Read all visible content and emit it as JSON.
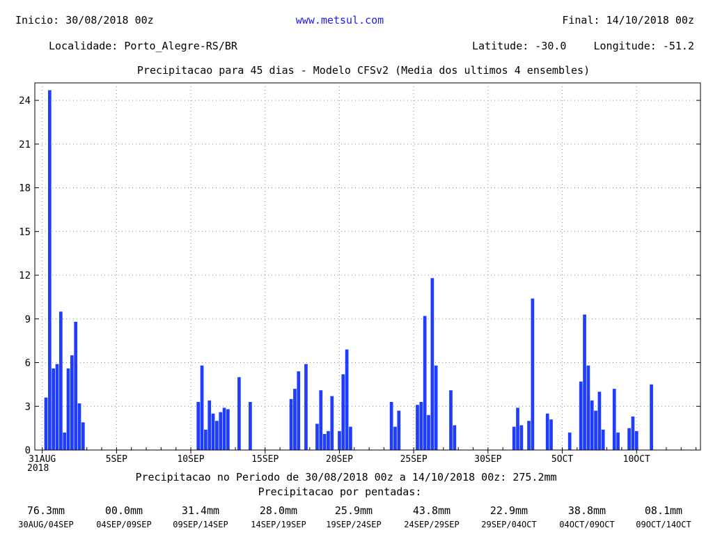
{
  "header": {
    "start": "Inicio: 30/08/2018 00z",
    "site": "www.metsul.com",
    "end": "Final: 14/10/2018 00z",
    "location": "Localidade: Porto_Alegre-RS/BR",
    "latitude": "Latitude: -30.0",
    "longitude": "Longitude: -51.2",
    "title": "Precipitacao para 45 dias - Modelo CFSv2 (Media dos ultimos 4 ensembles)"
  },
  "chart_data": {
    "type": "bar",
    "title": "Precipitacao para 45 dias - Modelo CFSv2 (Media dos ultimos 4 ensembles)",
    "xlabel": "",
    "ylabel": "",
    "ylim": [
      0,
      25.2
    ],
    "y_ticks": [
      0,
      3,
      6,
      9,
      12,
      15,
      18,
      21,
      24
    ],
    "x_range_days_from_31aug": [
      -0.5,
      44.3
    ],
    "x_ticks": [
      {
        "label": "31AUG",
        "sub": "2018",
        "day": 0
      },
      {
        "label": "5SEP",
        "day": 5
      },
      {
        "label": "10SEP",
        "day": 10
      },
      {
        "label": "15SEP",
        "day": 15
      },
      {
        "label": "20SEP",
        "day": 20
      },
      {
        "label": "25SEP",
        "day": 25
      },
      {
        "label": "30SEP",
        "day": 30
      },
      {
        "label": "5OCT",
        "day": 35
      },
      {
        "label": "10OCT",
        "day": 40
      }
    ],
    "grid": true,
    "bar_color": "#1f3dff",
    "bar_width_days": 0.22,
    "bars": [
      {
        "day": 0.25,
        "value": 3.6
      },
      {
        "day": 0.5,
        "value": 24.7
      },
      {
        "day": 0.75,
        "value": 5.6
      },
      {
        "day": 1.0,
        "value": 5.9
      },
      {
        "day": 1.25,
        "value": 9.5
      },
      {
        "day": 1.5,
        "value": 1.2
      },
      {
        "day": 1.75,
        "value": 5.6
      },
      {
        "day": 2.0,
        "value": 6.5
      },
      {
        "day": 2.25,
        "value": 8.8
      },
      {
        "day": 2.5,
        "value": 3.2
      },
      {
        "day": 2.75,
        "value": 1.9
      },
      {
        "day": 10.5,
        "value": 3.3
      },
      {
        "day": 10.75,
        "value": 5.8
      },
      {
        "day": 11.0,
        "value": 1.4
      },
      {
        "day": 11.25,
        "value": 3.4
      },
      {
        "day": 11.5,
        "value": 2.5
      },
      {
        "day": 11.75,
        "value": 2.0
      },
      {
        "day": 12.0,
        "value": 2.6
      },
      {
        "day": 12.25,
        "value": 2.9
      },
      {
        "day": 12.5,
        "value": 2.8
      },
      {
        "day": 13.25,
        "value": 5.0
      },
      {
        "day": 14.0,
        "value": 3.3
      },
      {
        "day": 16.75,
        "value": 3.5
      },
      {
        "day": 17.0,
        "value": 4.2
      },
      {
        "day": 17.25,
        "value": 5.4
      },
      {
        "day": 17.75,
        "value": 5.9
      },
      {
        "day": 18.5,
        "value": 1.8
      },
      {
        "day": 18.75,
        "value": 4.1
      },
      {
        "day": 19.0,
        "value": 1.1
      },
      {
        "day": 19.25,
        "value": 1.3
      },
      {
        "day": 19.5,
        "value": 3.7
      },
      {
        "day": 20.0,
        "value": 1.3
      },
      {
        "day": 20.25,
        "value": 5.2
      },
      {
        "day": 20.5,
        "value": 6.9
      },
      {
        "day": 20.75,
        "value": 1.6
      },
      {
        "day": 23.5,
        "value": 3.3
      },
      {
        "day": 23.75,
        "value": 1.6
      },
      {
        "day": 24.0,
        "value": 2.7
      },
      {
        "day": 25.25,
        "value": 3.1
      },
      {
        "day": 25.5,
        "value": 3.3
      },
      {
        "day": 25.75,
        "value": 9.2
      },
      {
        "day": 26.0,
        "value": 2.4
      },
      {
        "day": 26.25,
        "value": 11.8
      },
      {
        "day": 26.5,
        "value": 5.8
      },
      {
        "day": 27.5,
        "value": 4.1
      },
      {
        "day": 27.75,
        "value": 1.7
      },
      {
        "day": 31.75,
        "value": 1.6
      },
      {
        "day": 32.0,
        "value": 2.9
      },
      {
        "day": 32.25,
        "value": 1.7
      },
      {
        "day": 32.75,
        "value": 2.0
      },
      {
        "day": 33.0,
        "value": 10.4
      },
      {
        "day": 34.0,
        "value": 2.5
      },
      {
        "day": 34.25,
        "value": 2.1
      },
      {
        "day": 35.5,
        "value": 1.2
      },
      {
        "day": 36.25,
        "value": 4.7
      },
      {
        "day": 36.5,
        "value": 9.3
      },
      {
        "day": 36.75,
        "value": 5.8
      },
      {
        "day": 37.0,
        "value": 3.4
      },
      {
        "day": 37.25,
        "value": 2.7
      },
      {
        "day": 37.5,
        "value": 4.0
      },
      {
        "day": 37.75,
        "value": 1.4
      },
      {
        "day": 38.5,
        "value": 4.2
      },
      {
        "day": 38.75,
        "value": 1.2
      },
      {
        "day": 39.5,
        "value": 1.5
      },
      {
        "day": 39.75,
        "value": 2.3
      },
      {
        "day": 40.0,
        "value": 1.3
      },
      {
        "day": 41.0,
        "value": 4.5
      }
    ]
  },
  "footer": {
    "total": "Precipitacao no Periodo de 30/08/2018 00z a 14/10/2018 00z: 275.2mm",
    "pentads_title": "Precipitacao por pentadas:",
    "pentads": [
      {
        "value": "76.3mm",
        "label": "30AUG/04SEP"
      },
      {
        "value": "00.0mm",
        "label": "04SEP/09SEP"
      },
      {
        "value": "31.4mm",
        "label": "09SEP/14SEP"
      },
      {
        "value": "28.0mm",
        "label": "14SEP/19SEP"
      },
      {
        "value": "25.9mm",
        "label": "19SEP/24SEP"
      },
      {
        "value": "43.8mm",
        "label": "24SEP/29SEP"
      },
      {
        "value": "22.9mm",
        "label": "29SEP/04OCT"
      },
      {
        "value": "38.8mm",
        "label": "04OCT/09OCT"
      },
      {
        "value": "08.1mm",
        "label": "09OCT/14OCT"
      }
    ]
  }
}
